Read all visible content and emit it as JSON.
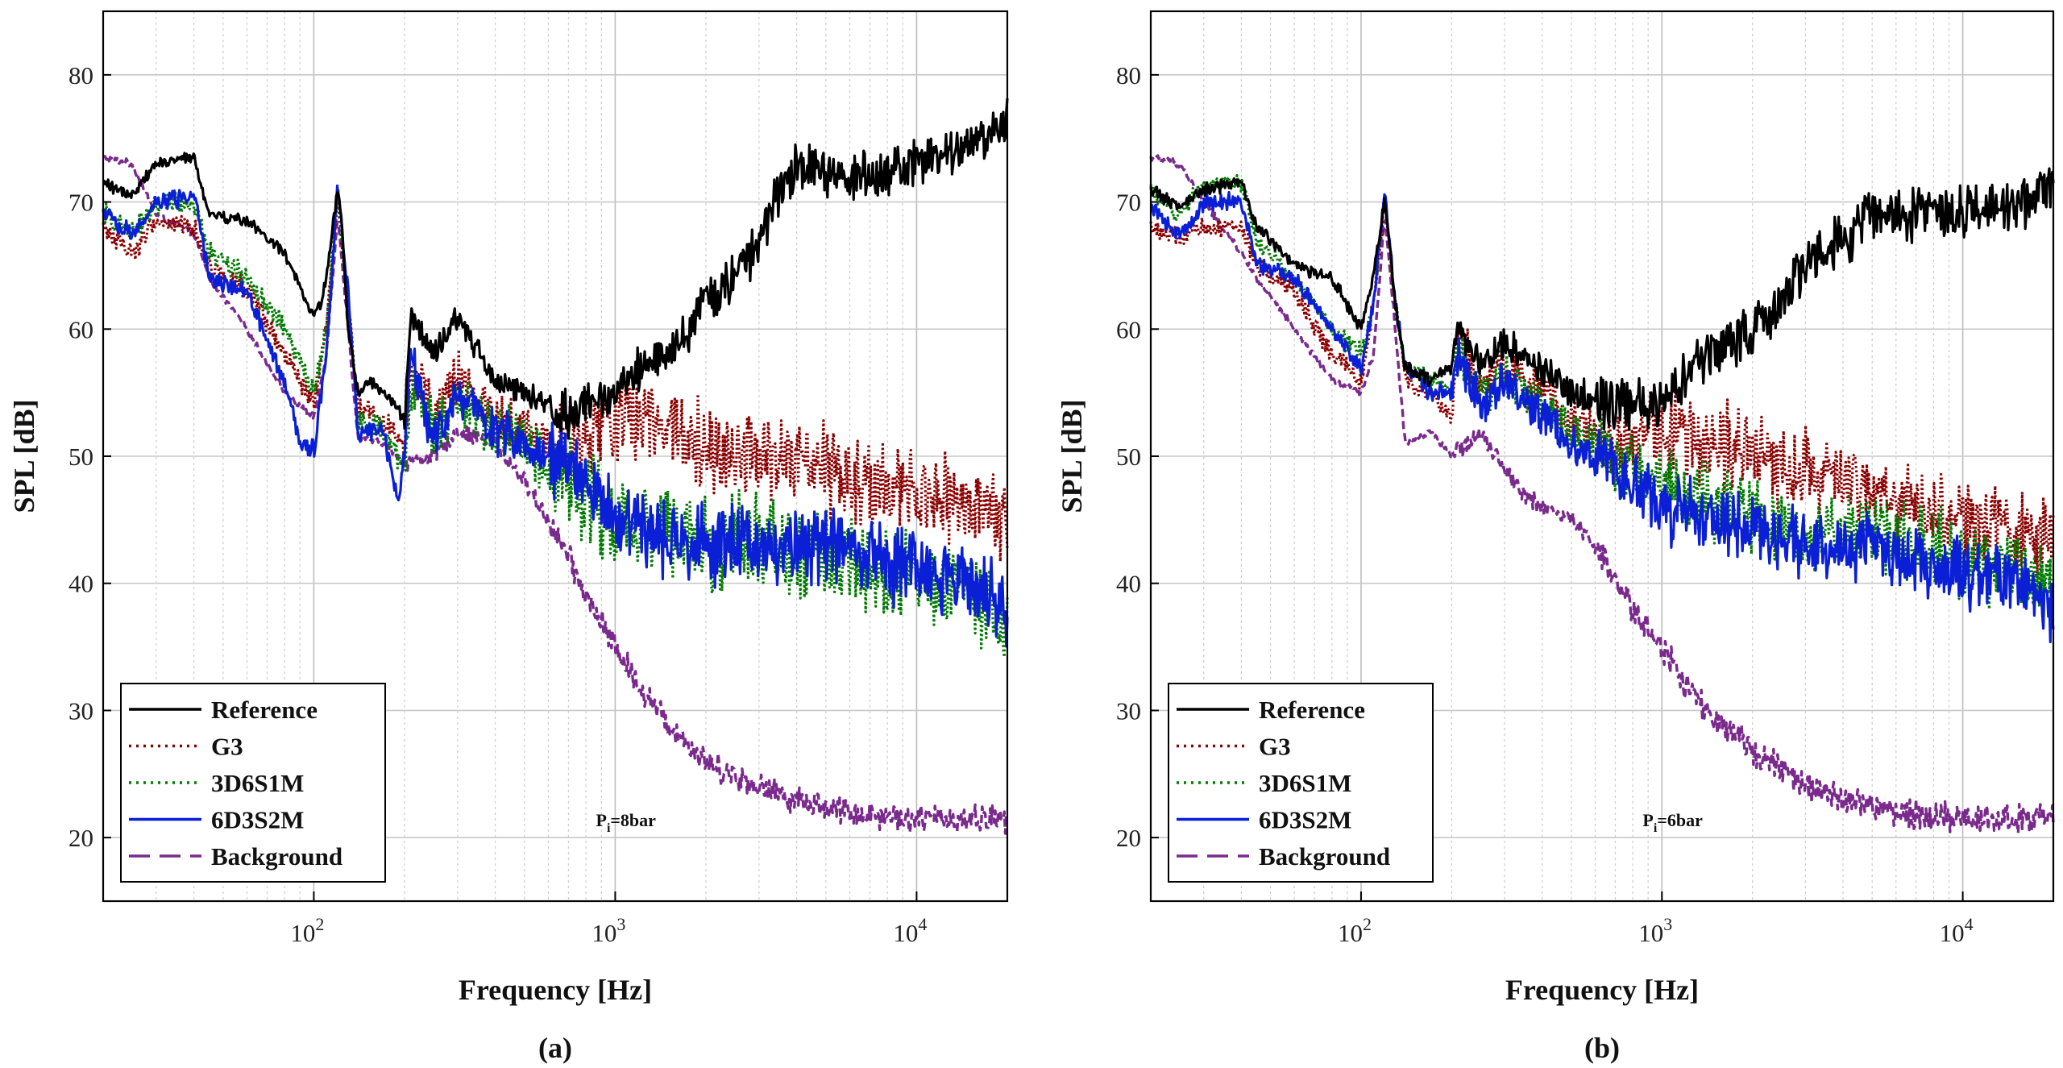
{
  "colors": {
    "reference": "#000000",
    "g3": "#8b0000",
    "d3s1m": "#007a00",
    "d6s2m": "#0a1fd6",
    "background": "#7a2a8c",
    "grid": "#c8c8c8"
  },
  "chart_data": [
    {
      "type": "line",
      "panel_label": "(a)",
      "annotation": {
        "main": "P",
        "sub": "i",
        "rest": "=8bar"
      },
      "xlabel": "Frequency [Hz]",
      "ylabel": "SPL [dB]",
      "xscale": "log",
      "xlim": [
        20,
        20000
      ],
      "ylim": [
        15,
        85
      ],
      "xticks": [
        {
          "value": 100,
          "base": "10",
          "exp": "2"
        },
        {
          "value": 1000,
          "base": "10",
          "exp": "3"
        },
        {
          "value": 10000,
          "base": "10",
          "exp": "4"
        }
      ],
      "yticks": [
        20,
        30,
        40,
        50,
        60,
        70,
        80
      ],
      "grid": true,
      "legend_position": "bottom-left",
      "series": [
        {
          "name": "Reference",
          "key": "reference",
          "style": "solid",
          "noise": 1.6,
          "x": [
            20,
            25,
            30,
            40,
            45,
            60,
            80,
            95,
            100,
            105,
            110,
            120,
            125,
            130,
            140,
            150,
            170,
            200,
            210,
            250,
            300,
            400,
            500,
            700,
            900,
            1000,
            1200,
            1500,
            2000,
            2500,
            3000,
            3500,
            4000,
            5000,
            7000,
            10000,
            15000,
            20000
          ],
          "y": [
            71.5,
            70.5,
            73,
            73.5,
            69,
            68.5,
            66,
            62,
            61,
            62,
            64,
            71,
            67,
            60,
            55,
            56,
            55,
            53,
            61,
            58,
            61,
            56,
            55,
            53,
            55,
            55,
            57,
            58,
            62,
            64,
            67,
            71,
            73,
            72,
            72,
            73,
            75,
            76
          ]
        },
        {
          "name": "G3",
          "key": "g3",
          "style": "dotted",
          "noise": 3.0,
          "x": [
            20,
            25,
            30,
            40,
            45,
            60,
            80,
            100,
            110,
            120,
            130,
            140,
            170,
            200,
            210,
            250,
            300,
            400,
            500,
            700,
            1000,
            1500,
            2000,
            3000,
            5000,
            7000,
            10000,
            15000,
            20000
          ],
          "y": [
            68,
            66,
            68.5,
            68,
            65,
            63,
            58,
            54,
            60,
            70,
            62,
            54,
            53,
            51,
            57,
            53,
            56,
            53,
            52,
            50,
            53,
            53,
            51,
            50,
            49,
            47,
            47,
            46,
            44
          ]
        },
        {
          "name": "3D6S1M",
          "key": "d3s1m",
          "style": "dotted",
          "noise": 3.2,
          "x": [
            20,
            25,
            30,
            40,
            45,
            60,
            80,
            100,
            110,
            120,
            130,
            140,
            170,
            200,
            210,
            250,
            300,
            400,
            500,
            700,
            1000,
            1500,
            2000,
            3000,
            5000,
            7000,
            10000,
            15000,
            20000
          ],
          "y": [
            69,
            67.5,
            70,
            70,
            66,
            64,
            60,
            55,
            60,
            70.5,
            62,
            53,
            52,
            49,
            56,
            52,
            54,
            52,
            51,
            48,
            45,
            44,
            43,
            43,
            42,
            41,
            40,
            39,
            37
          ]
        },
        {
          "name": "6D3S2M",
          "key": "d6s2m",
          "style": "solid",
          "noise": 2.6,
          "x": [
            20,
            25,
            30,
            40,
            45,
            60,
            80,
            90,
            100,
            110,
            120,
            130,
            140,
            170,
            190,
            200,
            210,
            250,
            300,
            400,
            500,
            700,
            1000,
            1500,
            2000,
            3000,
            5000,
            7000,
            10000,
            15000,
            20000
          ],
          "y": [
            69,
            67.5,
            70,
            70.5,
            64,
            63,
            56,
            51,
            50.5,
            58,
            71,
            63,
            52,
            52,
            46,
            50,
            58,
            51,
            55,
            52,
            51,
            49,
            45,
            43,
            43,
            43,
            43,
            42,
            41,
            40,
            38
          ]
        },
        {
          "name": "Background",
          "key": "background",
          "style": "dashed",
          "noise": 0.9,
          "x": [
            20,
            25,
            30,
            40,
            45,
            60,
            80,
            100,
            110,
            120,
            130,
            140,
            170,
            200,
            250,
            300,
            400,
            500,
            600,
            700,
            800,
            1000,
            1200,
            1500,
            2000,
            3000,
            4000,
            6000,
            10000,
            20000
          ],
          "y": [
            73.5,
            73,
            69,
            67.5,
            64,
            60,
            55,
            53,
            58,
            69,
            60,
            51.5,
            51,
            49.5,
            50,
            52,
            51,
            48,
            45,
            42,
            39,
            35,
            32,
            29,
            26,
            24,
            23,
            22,
            21.5,
            21.5
          ]
        }
      ]
    },
    {
      "type": "line",
      "panel_label": "(b)",
      "annotation": {
        "main": "P",
        "sub": "i",
        "rest": "=6bar"
      },
      "xlabel": "Frequency [Hz]",
      "ylabel": "SPL [dB]",
      "xscale": "log",
      "xlim": [
        20,
        20000
      ],
      "ylim": [
        15,
        85
      ],
      "xticks": [
        {
          "value": 100,
          "base": "10",
          "exp": "2"
        },
        {
          "value": 1000,
          "base": "10",
          "exp": "3"
        },
        {
          "value": 10000,
          "base": "10",
          "exp": "4"
        }
      ],
      "yticks": [
        20,
        30,
        40,
        50,
        60,
        70,
        80
      ],
      "grid": true,
      "legend_position": "bottom-left",
      "series": [
        {
          "name": "Reference",
          "key": "reference",
          "style": "solid",
          "noise": 1.8,
          "x": [
            20,
            25,
            30,
            40,
            45,
            60,
            80,
            95,
            100,
            110,
            120,
            130,
            140,
            170,
            200,
            210,
            250,
            300,
            400,
            500,
            700,
            900,
            1000,
            1200,
            1500,
            2000,
            2500,
            3000,
            4000,
            5000,
            7000,
            10000,
            15000,
            20000
          ],
          "y": [
            71,
            69.5,
            71,
            71.5,
            68,
            65,
            64,
            61,
            60,
            64,
            70.5,
            62,
            57,
            56,
            57,
            60,
            57,
            59,
            57,
            55,
            54,
            54,
            55,
            56,
            58,
            60,
            62,
            65,
            67,
            69,
            69,
            69,
            70,
            71
          ]
        },
        {
          "name": "G3",
          "key": "g3",
          "style": "dotted",
          "noise": 2.8,
          "x": [
            20,
            25,
            30,
            40,
            45,
            60,
            80,
            100,
            110,
            120,
            130,
            140,
            170,
            200,
            210,
            250,
            300,
            400,
            500,
            700,
            1000,
            1500,
            2000,
            3000,
            5000,
            7000,
            10000,
            15000,
            20000
          ],
          "y": [
            68,
            67,
            68,
            68,
            65,
            63,
            58,
            56,
            62,
            70,
            62,
            56,
            55,
            53,
            60,
            55,
            57,
            55,
            53,
            51,
            52,
            51,
            50,
            49,
            47,
            46,
            45,
            44,
            43
          ]
        },
        {
          "name": "3D6S1M",
          "key": "d3s1m",
          "style": "dotted",
          "noise": 2.6,
          "x": [
            20,
            25,
            30,
            40,
            45,
            60,
            80,
            100,
            110,
            120,
            130,
            140,
            170,
            200,
            210,
            250,
            300,
            400,
            500,
            700,
            1000,
            1500,
            2000,
            3000,
            5000,
            7000,
            10000,
            15000,
            20000
          ],
          "y": [
            71,
            69,
            71.5,
            71.5,
            67,
            64,
            60,
            58,
            62,
            70.5,
            62,
            57,
            56,
            55,
            58,
            55,
            56,
            54,
            52,
            50,
            48,
            46,
            45,
            44,
            44,
            43,
            42,
            41,
            40
          ]
        },
        {
          "name": "6D3S2M",
          "key": "d6s2m",
          "style": "solid",
          "noise": 2.3,
          "x": [
            20,
            25,
            30,
            40,
            45,
            60,
            80,
            100,
            110,
            120,
            130,
            140,
            170,
            200,
            210,
            250,
            300,
            400,
            500,
            700,
            1000,
            1500,
            2000,
            3000,
            5000,
            7000,
            10000,
            15000,
            20000
          ],
          "y": [
            69.5,
            67.5,
            70,
            70,
            65,
            64,
            60,
            57,
            62,
            70.5,
            62,
            57,
            55,
            55,
            58,
            54,
            56,
            53,
            51,
            49,
            46,
            45,
            44,
            43,
            43,
            42,
            41,
            40,
            38
          ]
        },
        {
          "name": "Background",
          "key": "background",
          "style": "dashed",
          "noise": 1.0,
          "x": [
            20,
            25,
            30,
            40,
            45,
            60,
            80,
            100,
            110,
            120,
            130,
            140,
            170,
            200,
            250,
            300,
            350,
            400,
            500,
            600,
            700,
            800,
            1000,
            1200,
            1500,
            2000,
            3000,
            4000,
            6000,
            10000,
            20000
          ],
          "y": [
            73.5,
            73,
            70,
            66,
            64,
            60,
            56,
            55,
            58,
            69,
            60,
            51,
            52,
            50,
            52,
            49,
            47,
            46,
            45,
            43,
            40,
            38,
            35,
            32,
            29,
            27,
            24,
            23,
            22,
            21.5,
            21.5
          ]
        }
      ]
    }
  ]
}
